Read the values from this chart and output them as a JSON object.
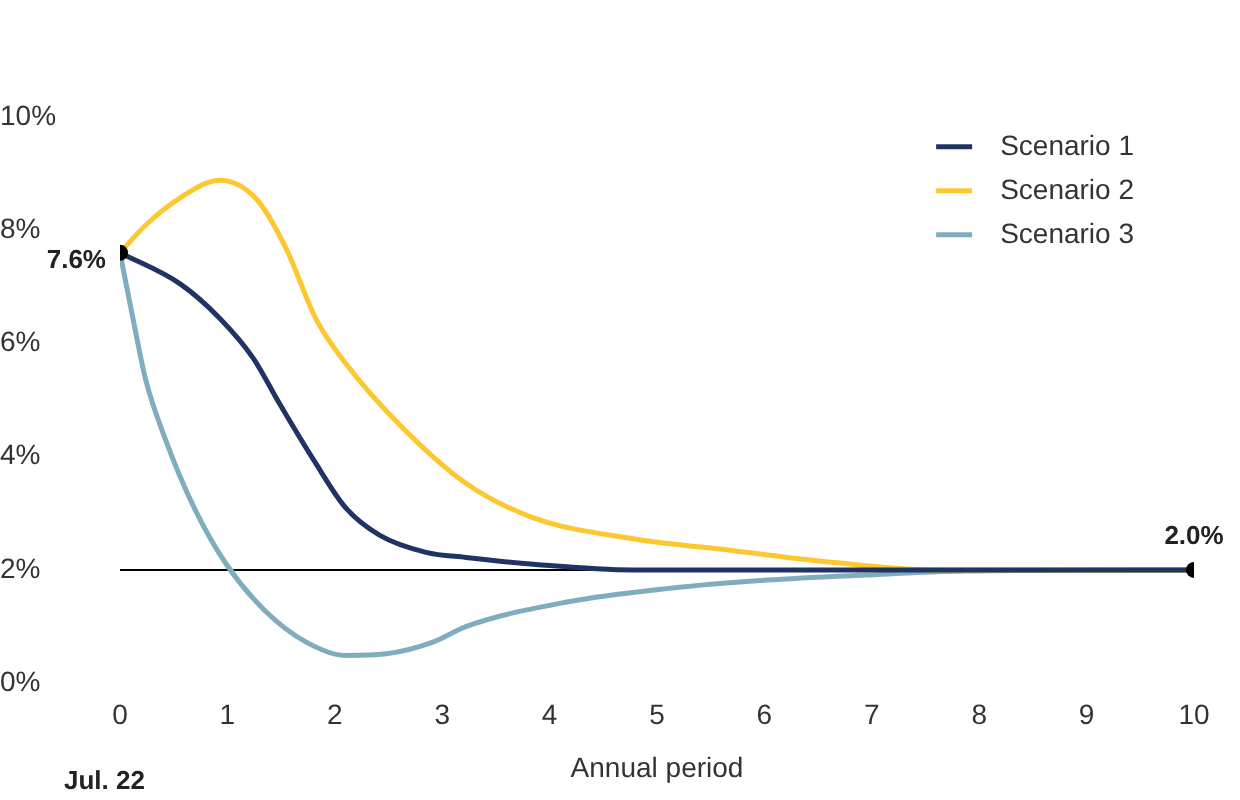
{
  "chart_data": {
    "type": "line",
    "xlabel": "Annual period",
    "legend": "top right",
    "marker": "none",
    "grid": false,
    "xlim": [
      0,
      10
    ],
    "xticks": [
      0,
      1,
      2,
      3,
      4,
      5,
      6,
      7,
      8,
      9,
      10
    ],
    "ylim": [
      0,
      10
    ],
    "yticks": [
      {
        "value": 0,
        "label": "0%"
      },
      {
        "value": 2,
        "label": "2%"
      },
      {
        "value": 4,
        "label": "4%"
      },
      {
        "value": 6,
        "label": "6%"
      },
      {
        "value": 8,
        "label": "8%"
      },
      {
        "value": 10,
        "label": "10%"
      }
    ],
    "series": [
      {
        "name": "Scenario 1",
        "color": "#1f3464",
        "x": [
          0,
          0.56,
          0.93,
          1.24,
          1.49,
          1.81,
          2.1,
          2.42,
          2.85,
          3.22,
          3.85,
          4.78,
          5.95,
          7.98,
          10
        ],
        "values": [
          7.6,
          7.05,
          6.44,
          5.74,
          4.92,
          3.92,
          3.1,
          2.61,
          2.31,
          2.22,
          2.1,
          2.0,
          2.0,
          2.0,
          2.0
        ]
      },
      {
        "name": "Scenario 2",
        "color": "#fdc82f",
        "x": [
          0,
          0.24,
          0.56,
          0.93,
          1.12,
          1.3,
          1.55,
          1.83,
          2.1,
          2.61,
          3.22,
          3.85,
          4.78,
          5.71,
          6.65,
          7.57,
          10
        ],
        "values": [
          7.6,
          8.09,
          8.57,
          8.88,
          8.78,
          8.48,
          7.66,
          6.41,
          5.65,
          4.55,
          3.53,
          2.92,
          2.55,
          2.34,
          2.13,
          2.0,
          2.0
        ]
      },
      {
        "name": "Scenario 3",
        "color": "#7fadbf",
        "x": [
          0,
          0.13,
          0.24,
          0.42,
          0.69,
          0.99,
          1.35,
          1.73,
          2.1,
          2.48,
          2.92,
          3.22,
          4.15,
          5.09,
          6.02,
          6.94,
          7.87,
          10
        ],
        "values": [
          7.6,
          6.35,
          5.35,
          4.32,
          3.1,
          2.1,
          1.28,
          0.73,
          0.49,
          0.52,
          0.73,
          1.0,
          1.43,
          1.67,
          1.82,
          1.91,
          1.98,
          2.0
        ]
      },
      {
        "type": "scatter",
        "marker": "circle",
        "color": "#000000",
        "x": [
          0,
          10
        ],
        "values": [
          7.6,
          2.0
        ]
      }
    ],
    "ref_lines": [
      {
        "axis": "y",
        "value": 2,
        "color": "#000000"
      }
    ],
    "annotations": [
      {
        "text": "7.6%",
        "x": 0,
        "y": 7.6
      },
      {
        "text": "2.0%",
        "x": 10,
        "y": 2.0
      },
      "Jul. 22"
    ]
  }
}
